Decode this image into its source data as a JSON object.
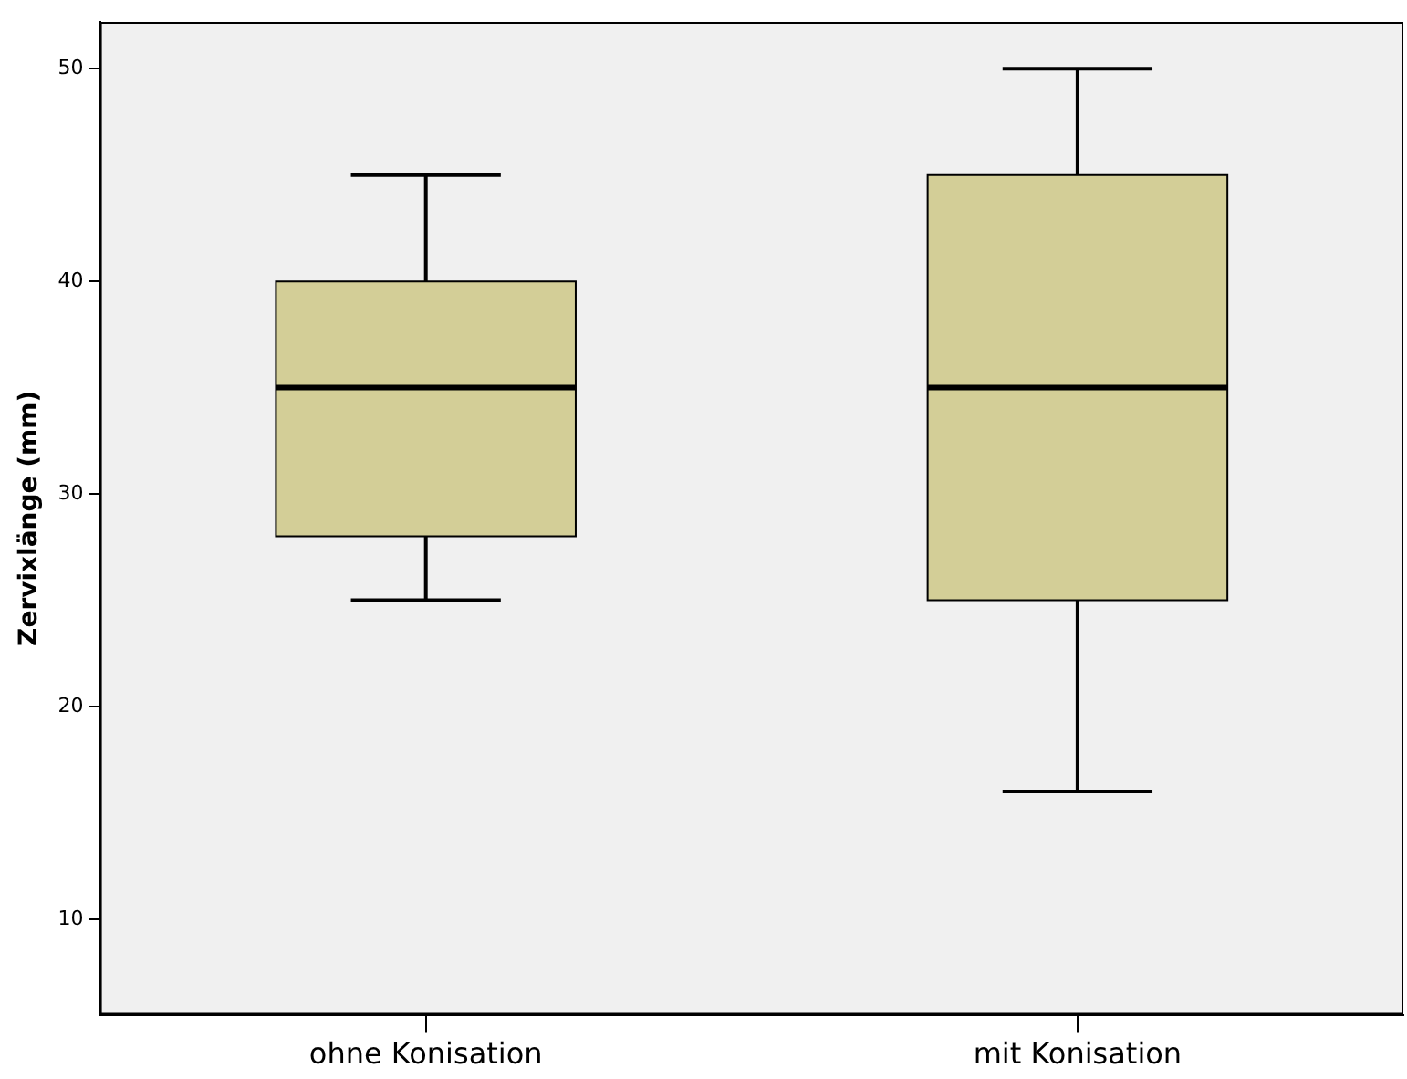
{
  "chart_data": {
    "type": "box",
    "ylabel": "Zervixlänge (mm)",
    "categories": [
      "ohne Konisation",
      "mit Konisation"
    ],
    "boxes": [
      {
        "low": 25,
        "q1": 28,
        "median": 35,
        "q3": 40,
        "high": 45
      },
      {
        "low": 16,
        "q1": 25,
        "median": 35,
        "q3": 45,
        "high": 50
      }
    ],
    "color": "#d3ce97",
    "ylim": [
      5.5,
      52.2
    ],
    "yticks": [
      10,
      20,
      30,
      40,
      50
    ],
    "grid": false
  }
}
